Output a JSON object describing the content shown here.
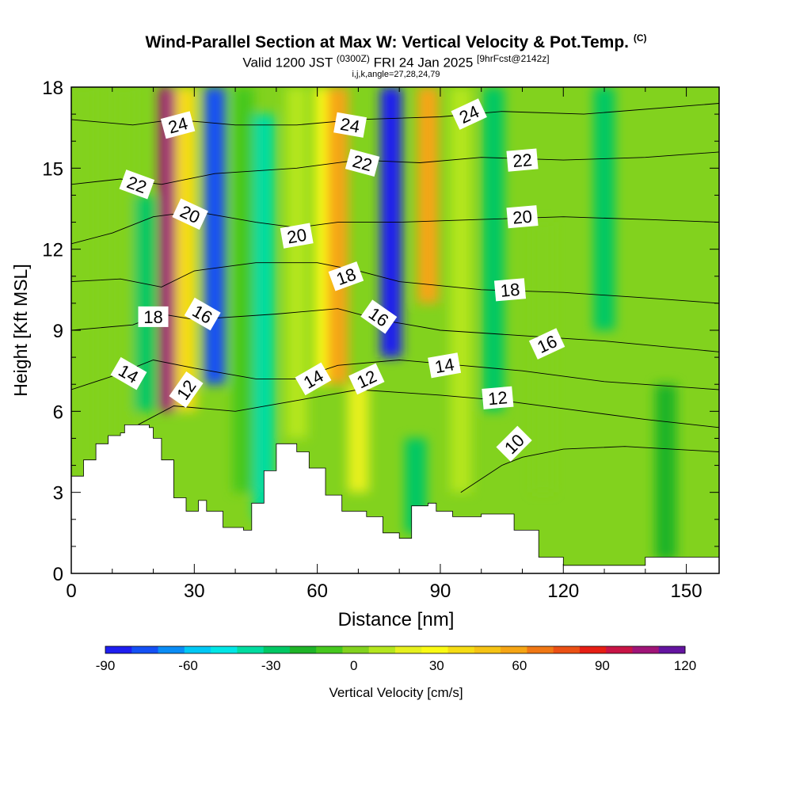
{
  "title": {
    "main": "Wind-Parallel Section at Max W: Vertical Velocity & Pot.Temp.",
    "main_tag": "(C)",
    "valid_prefix": "Valid 1200 JST",
    "valid_z": "(0300Z)",
    "valid_date": "FRI 24 Jan 2025",
    "valid_fcst": "[9hrFcst@2142z]",
    "indices": "i,j,k,angle=27,28,24,79"
  },
  "chart_data": {
    "type": "heatmap",
    "xlabel": "Distance [nm]",
    "ylabel": "Height [Kft MSL]",
    "xlim": [
      0,
      158
    ],
    "ylim": [
      0,
      18
    ],
    "x_ticks": [
      0,
      30,
      60,
      90,
      120,
      150
    ],
    "y_ticks": [
      0,
      3,
      6,
      9,
      12,
      15,
      18
    ],
    "colorbar": {
      "label": "Vertical Velocity [cm/s]",
      "ticks": [
        -90,
        -60,
        -30,
        0,
        30,
        60,
        90,
        120
      ],
      "levels": [
        -90,
        -80,
        -70,
        -60,
        -50,
        -40,
        -30,
        -20,
        -10,
        0,
        10,
        20,
        30,
        40,
        50,
        60,
        70,
        80,
        90,
        100,
        110,
        120
      ],
      "colors": [
        "#1e1ef0",
        "#1450f5",
        "#0a8cf5",
        "#00c8f5",
        "#00e6e6",
        "#00dca0",
        "#00c864",
        "#1eb428",
        "#46c81e",
        "#82d21e",
        "#b4e61e",
        "#e6f01e",
        "#fafa14",
        "#f5dc14",
        "#f5c314",
        "#f5a514",
        "#f07814",
        "#eb5014",
        "#e61e14",
        "#c81446",
        "#a01478",
        "#6414a0"
      ]
    },
    "vertical_velocity_bands": [
      {
        "x": 3,
        "w": 0,
        "height_range": [
          0,
          18
        ]
      },
      {
        "x": 13,
        "w": 5,
        "height_range": [
          3,
          18
        ]
      },
      {
        "x": 18,
        "w": -30,
        "height_range": [
          6,
          14
        ]
      },
      {
        "x": 24,
        "w": 110,
        "height_range": [
          6,
          18
        ]
      },
      {
        "x": 28,
        "w": 40,
        "height_range": [
          6,
          18
        ]
      },
      {
        "x": 35,
        "w": -75,
        "height_range": [
          7,
          18
        ]
      },
      {
        "x": 42,
        "w": -10,
        "height_range": [
          3,
          18
        ]
      },
      {
        "x": 47,
        "w": -35,
        "height_range": [
          2,
          17
        ]
      },
      {
        "x": 55,
        "w": 15,
        "height_range": [
          5,
          18
        ]
      },
      {
        "x": 62,
        "w": 35,
        "height_range": [
          7,
          18
        ]
      },
      {
        "x": 65,
        "w": 65,
        "height_range": [
          7,
          18
        ]
      },
      {
        "x": 70,
        "w": 25,
        "height_range": [
          3,
          7
        ]
      },
      {
        "x": 78,
        "w": -90,
        "height_range": [
          8,
          18
        ]
      },
      {
        "x": 84,
        "w": -30,
        "height_range": [
          1.5,
          5
        ]
      },
      {
        "x": 87,
        "w": 60,
        "height_range": [
          10,
          18
        ]
      },
      {
        "x": 95,
        "w": 15,
        "height_range": [
          3,
          18
        ]
      },
      {
        "x": 103,
        "w": -25,
        "height_range": [
          6,
          18
        ]
      },
      {
        "x": 115,
        "w": 5,
        "height_range": [
          3,
          13
        ]
      },
      {
        "x": 130,
        "w": -25,
        "height_range": [
          9,
          18
        ]
      },
      {
        "x": 145,
        "w": -20,
        "height_range": [
          0.5,
          7
        ]
      }
    ],
    "terrain_height_kft": [
      [
        0,
        3.6
      ],
      [
        3,
        4.2
      ],
      [
        6,
        4.8
      ],
      [
        9,
        5.1
      ],
      [
        12,
        5.2
      ],
      [
        13,
        5.5
      ],
      [
        19,
        5.4
      ],
      [
        20,
        5.0
      ],
      [
        22,
        4.2
      ],
      [
        25,
        2.8
      ],
      [
        28,
        2.3
      ],
      [
        31,
        2.7
      ],
      [
        33,
        2.3
      ],
      [
        37,
        1.7
      ],
      [
        42,
        1.6
      ],
      [
        44,
        2.6
      ],
      [
        47,
        3.8
      ],
      [
        50,
        4.8
      ],
      [
        55,
        4.5
      ],
      [
        58,
        3.9
      ],
      [
        62,
        2.9
      ],
      [
        66,
        2.3
      ],
      [
        72,
        2.1
      ],
      [
        76,
        1.5
      ],
      [
        80,
        1.3
      ],
      [
        83,
        2.5
      ],
      [
        87,
        2.6
      ],
      [
        89,
        2.3
      ],
      [
        93,
        2.1
      ],
      [
        100,
        2.2
      ],
      [
        108,
        1.6
      ],
      [
        114,
        0.6
      ],
      [
        120,
        0.3
      ],
      [
        130,
        0.3
      ],
      [
        140,
        0.6
      ],
      [
        158,
        0.6
      ]
    ],
    "isentropes": [
      {
        "label": "10",
        "points": [
          [
            95,
            3.0
          ],
          [
            105,
            4.0
          ],
          [
            110,
            4.3
          ],
          [
            120,
            4.6
          ],
          [
            135,
            4.7
          ],
          [
            158,
            4.5
          ]
        ]
      },
      {
        "label": "12",
        "points": [
          [
            15,
            5.4
          ],
          [
            25,
            6.2
          ],
          [
            40,
            6.0
          ],
          [
            55,
            6.4
          ],
          [
            70,
            6.8
          ],
          [
            90,
            6.6
          ],
          [
            105,
            6.4
          ],
          [
            120,
            6.1
          ],
          [
            140,
            5.7
          ],
          [
            158,
            5.4
          ]
        ]
      },
      {
        "label": "14",
        "points": [
          [
            0,
            6.8
          ],
          [
            10,
            7.3
          ],
          [
            20,
            7.9
          ],
          [
            30,
            7.6
          ],
          [
            45,
            7.2
          ],
          [
            55,
            7.2
          ],
          [
            65,
            7.7
          ],
          [
            80,
            7.9
          ],
          [
            95,
            7.7
          ],
          [
            110,
            7.5
          ],
          [
            130,
            7.1
          ],
          [
            158,
            6.8
          ]
        ]
      },
      {
        "label": "16",
        "points": [
          [
            0,
            9.0
          ],
          [
            15,
            9.2
          ],
          [
            22,
            9.6
          ],
          [
            30,
            9.4
          ],
          [
            50,
            9.6
          ],
          [
            65,
            9.8
          ],
          [
            75,
            9.4
          ],
          [
            90,
            9.0
          ],
          [
            110,
            8.8
          ],
          [
            130,
            8.6
          ],
          [
            158,
            8.2
          ]
        ]
      },
      {
        "label": "18",
        "points": [
          [
            0,
            10.8
          ],
          [
            12,
            10.9
          ],
          [
            22,
            10.6
          ],
          [
            30,
            11.2
          ],
          [
            45,
            11.5
          ],
          [
            60,
            11.5
          ],
          [
            70,
            11.2
          ],
          [
            80,
            10.8
          ],
          [
            100,
            10.5
          ],
          [
            120,
            10.4
          ],
          [
            140,
            10.2
          ],
          [
            158,
            10.0
          ]
        ]
      },
      {
        "label": "20",
        "points": [
          [
            0,
            12.2
          ],
          [
            10,
            12.6
          ],
          [
            20,
            13.2
          ],
          [
            30,
            13.4
          ],
          [
            45,
            13.0
          ],
          [
            55,
            12.8
          ],
          [
            65,
            13.0
          ],
          [
            80,
            13.0
          ],
          [
            100,
            13.1
          ],
          [
            120,
            13.2
          ],
          [
            140,
            13.1
          ],
          [
            158,
            13.0
          ]
        ]
      },
      {
        "label": "22",
        "points": [
          [
            0,
            14.4
          ],
          [
            12,
            14.6
          ],
          [
            22,
            14.4
          ],
          [
            35,
            14.8
          ],
          [
            55,
            15.0
          ],
          [
            70,
            15.3
          ],
          [
            85,
            15.2
          ],
          [
            100,
            15.4
          ],
          [
            120,
            15.3
          ],
          [
            140,
            15.4
          ],
          [
            158,
            15.6
          ]
        ]
      },
      {
        "label": "24",
        "points": [
          [
            0,
            16.8
          ],
          [
            15,
            16.6
          ],
          [
            25,
            16.8
          ],
          [
            40,
            16.6
          ],
          [
            55,
            16.6
          ],
          [
            70,
            16.8
          ],
          [
            90,
            16.9
          ],
          [
            105,
            17.1
          ],
          [
            125,
            17.0
          ],
          [
            158,
            17.4
          ]
        ]
      }
    ],
    "contour_labels": [
      {
        "text": "24",
        "x": 26,
        "y": 16.6,
        "angle": -15
      },
      {
        "text": "24",
        "x": 68,
        "y": 16.6,
        "angle": 10
      },
      {
        "text": "24",
        "x": 97,
        "y": 17.0,
        "angle": -25
      },
      {
        "text": "22",
        "x": 16,
        "y": 14.4,
        "angle": 20
      },
      {
        "text": "22",
        "x": 71,
        "y": 15.2,
        "angle": 15
      },
      {
        "text": "22",
        "x": 110,
        "y": 15.3,
        "angle": -5
      },
      {
        "text": "20",
        "x": 29,
        "y": 13.3,
        "angle": 25
      },
      {
        "text": "20",
        "x": 55,
        "y": 12.5,
        "angle": -10
      },
      {
        "text": "20",
        "x": 110,
        "y": 13.2,
        "angle": -5
      },
      {
        "text": "18",
        "x": 20,
        "y": 9.5,
        "angle": 0
      },
      {
        "text": "18",
        "x": 67,
        "y": 11.0,
        "angle": -20
      },
      {
        "text": "18",
        "x": 107,
        "y": 10.5,
        "angle": -5
      },
      {
        "text": "16",
        "x": 32,
        "y": 9.6,
        "angle": 30
      },
      {
        "text": "16",
        "x": 75,
        "y": 9.5,
        "angle": 35
      },
      {
        "text": "16",
        "x": 116,
        "y": 8.5,
        "angle": -25
      },
      {
        "text": "14",
        "x": 14,
        "y": 7.4,
        "angle": 30
      },
      {
        "text": "14",
        "x": 59,
        "y": 7.2,
        "angle": -30
      },
      {
        "text": "14",
        "x": 91,
        "y": 7.7,
        "angle": -10
      },
      {
        "text": "12",
        "x": 28,
        "y": 6.8,
        "angle": -55
      },
      {
        "text": "12",
        "x": 72,
        "y": 7.2,
        "angle": -25
      },
      {
        "text": "12",
        "x": 104,
        "y": 6.5,
        "angle": -5
      },
      {
        "text": "10",
        "x": 108,
        "y": 4.8,
        "angle": -45
      }
    ],
    "grid": false
  }
}
